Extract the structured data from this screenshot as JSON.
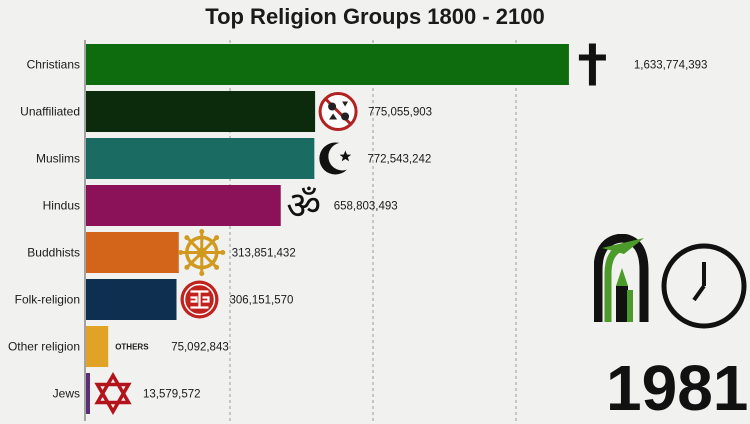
{
  "chart_data": {
    "type": "bar",
    "orientation": "horizontal",
    "title": "Top Religion Groups 1800 - 2100",
    "categories": [
      "Christians",
      "Unaffiliated",
      "Muslims",
      "Hindus",
      "Buddhists",
      "Folk-religion",
      "Other religion",
      "Jews"
    ],
    "values": [
      1633774393,
      775055903,
      772543242,
      658803493,
      313851432,
      306151570,
      75092843,
      13579572
    ],
    "value_labels": [
      "1,633,774,393",
      "775,055,903",
      "772,543,242",
      "658,803,493",
      "313,851,432",
      "306,151,570",
      "75,092,843",
      "13,579,572"
    ],
    "colors": [
      "#0e6b0e",
      "#0c2a0c",
      "#1a6b62",
      "#8b1158",
      "#d2651a",
      "#0e2f50",
      "#e0a325",
      "#5a2f73"
    ],
    "icons": [
      "latin-cross-icon",
      "unaffiliated-symbols-icon",
      "crescent-star-icon",
      "om-icon",
      "dharma-wheel-icon",
      "folk-religion-emblem-icon",
      "others-tag",
      "star-of-david-icon"
    ],
    "other_note": "OTHERS",
    "xlim": [
      0,
      1750000000
    ],
    "grid": true
  },
  "year": "1981"
}
